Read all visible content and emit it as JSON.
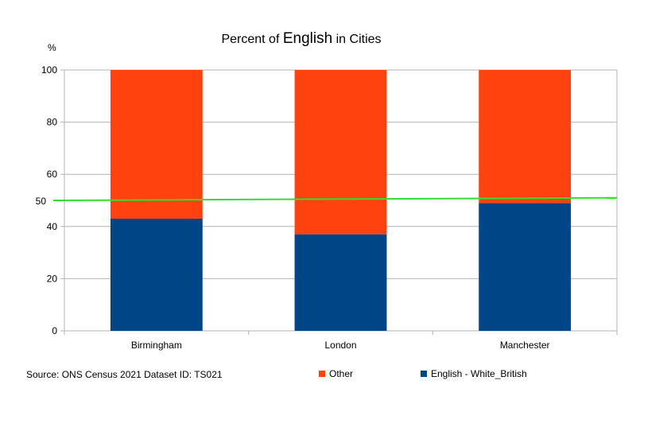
{
  "chart_data": {
    "type": "bar",
    "stacked": true,
    "title_parts": [
      "Percent of ",
      "English",
      " in Cities"
    ],
    "ylabel": "%",
    "categories": [
      "Birmingham",
      "London",
      "Manchester"
    ],
    "series": [
      {
        "name": "English - White_British",
        "values": [
          43,
          37,
          49
        ],
        "color": "#004586"
      },
      {
        "name": "Other",
        "values": [
          57,
          63,
          51
        ],
        "color": "#ff420e"
      }
    ],
    "ylim": [
      0,
      100
    ],
    "yticks": [
      0,
      20,
      40,
      60,
      80,
      100
    ],
    "reference_line": {
      "label": "50",
      "y_start": 50,
      "y_end": 51,
      "color": "#33dd33"
    },
    "grid": true,
    "legend": {
      "placement": "bottom",
      "order": [
        "Other",
        "English - White_British"
      ]
    },
    "source_note": "Source: ONS  Census 2021 Dataset ID: TS021"
  }
}
